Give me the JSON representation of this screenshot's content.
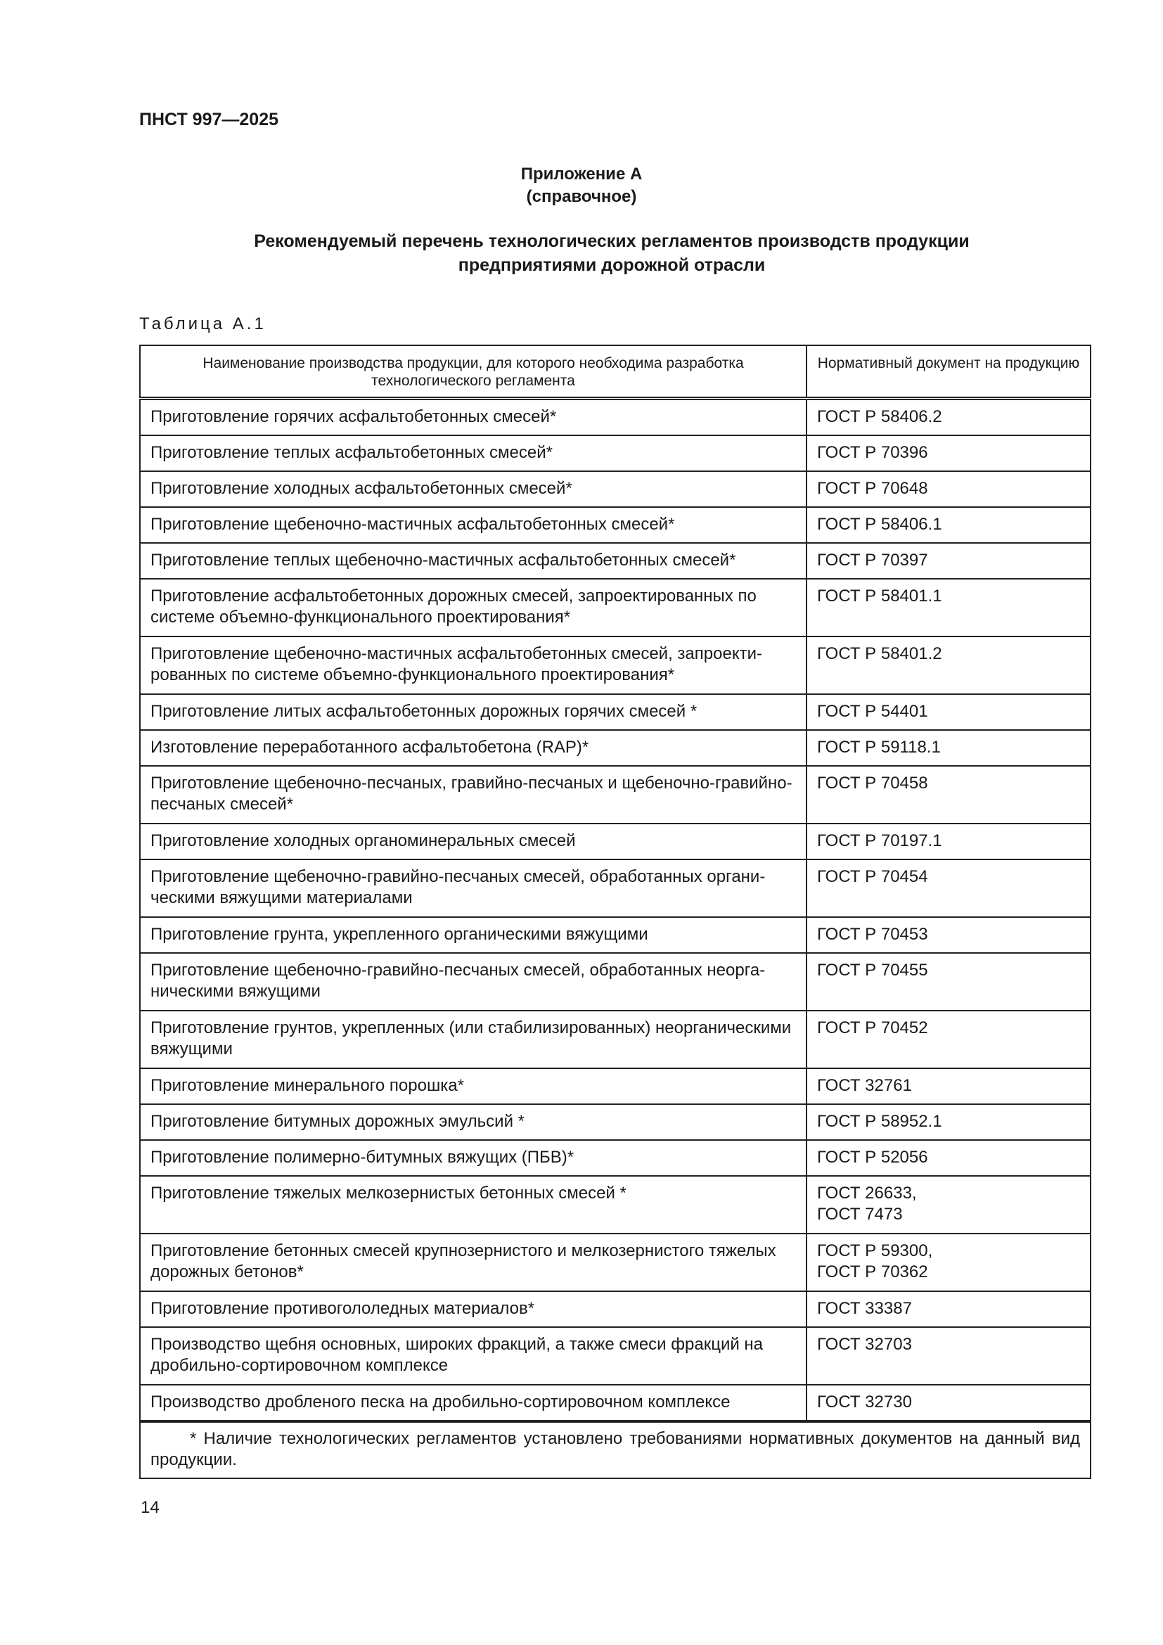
{
  "header": {
    "doc_code": "ПНСТ 997—2025"
  },
  "appendix": {
    "title": "Приложение А",
    "subtitle": "(справочное)"
  },
  "heading": {
    "line1": "Рекомендуемый перечень технологических регламентов производств продукции",
    "line2": "предприятиями дорожной отрасли"
  },
  "table": {
    "label": "Таблица А.1",
    "columns": [
      "Наименование производства продукции, для которого необходима разработка технологического регламента",
      "Нормативный документ на продукцию"
    ],
    "rows": [
      {
        "name": "Приготовление горячих асфальтобетонных смесей*",
        "doc": "ГОСТ Р 58406.2"
      },
      {
        "name": "Приготовление теплых асфальтобетонных смесей*",
        "doc": "ГОСТ Р 70396"
      },
      {
        "name": "Приготовление холодных асфальтобетонных смесей*",
        "doc": "ГОСТ Р 70648"
      },
      {
        "name": "Приготовление щебеночно-мастичных асфальтобетонных смесей*",
        "doc": "ГОСТ Р 58406.1"
      },
      {
        "name": "Приготовление теплых щебеночно-мастичных асфальтобетонных смесей*",
        "doc": "ГОСТ Р 70397"
      },
      {
        "name": "Приготовление асфальтобетонных дорожных смесей, запроектированных по системе объемно-функционального проектирования*",
        "doc": "ГОСТ Р 58401.1"
      },
      {
        "name": "Приготовление щебеночно-мастичных асфальтобетонных смесей, запроекти­рованных по системе объемно-функционального проектирования*",
        "doc": "ГОСТ Р 58401.2"
      },
      {
        "name": "Приготовление литых асфальтобетонных дорожных горячих смесей *",
        "doc": "ГОСТ Р 54401"
      },
      {
        "name": "Изготовление переработанного асфальтобетона (RAP)*",
        "doc": "ГОСТ Р 59118.1"
      },
      {
        "name": "Приготовление щебеночно-песчаных, гравийно-песчаных и щебеночно-гра­вийно-песчаных смесей*",
        "doc": "ГОСТ Р 70458"
      },
      {
        "name": "Приготовление холодных органоминеральных смесей",
        "doc": "ГОСТ Р 70197.1"
      },
      {
        "name": "Приготовление щебеночно-гравийно-песчаных смесей, обработанных органи­ческими вяжущими материалами",
        "doc": "ГОСТ Р 70454"
      },
      {
        "name": "Приготовление грунта, укрепленного органическими вяжущими",
        "doc": "ГОСТ Р 70453"
      },
      {
        "name": "Приготовление щебеночно-гравийно-песчаных смесей, обработанных неорга­ническими вяжущими",
        "doc": "ГОСТ Р 70455"
      },
      {
        "name": "Приготовление грунтов, укрепленных (или стабилизированных) неорганиче­скими вяжущими",
        "doc": "ГОСТ Р 70452"
      },
      {
        "name": "Приготовление минерального порошка*",
        "doc": "ГОСТ 32761"
      },
      {
        "name": "Приготовление битумных дорожных эмульсий *",
        "doc": "ГОСТ Р 58952.1"
      },
      {
        "name": "Приготовление полимерно-битумных вяжущих (ПБВ)*",
        "doc": "ГОСТ Р 52056"
      },
      {
        "name": "Приготовление тяжелых мелкозернистых бетонных смесей *",
        "doc": "ГОСТ 26633,",
        "doc2": "ГОСТ 7473"
      },
      {
        "name": "Приготовление бетонных смесей крупнозернистого и мелкозернистого тяже­лых дорожных бетонов*",
        "doc": "ГОСТ Р 59300,",
        "doc2": "ГОСТ Р 70362"
      },
      {
        "name": "Приготовление противогололедных материалов*",
        "doc": "ГОСТ 33387"
      },
      {
        "name": "Производство щебня основных, широких фракций, а также смеси фракций на дробильно-сортировочном комплексе",
        "doc": "ГОСТ 32703"
      },
      {
        "name": "Производство дробленого песка на дробильно-сортировочном комплексе",
        "doc": "ГОСТ 32730"
      }
    ],
    "footnote": "* Наличие технологических регламентов установлено требованиями нормативных документов на данный вид продукции."
  },
  "footer": {
    "page_number": "14"
  }
}
